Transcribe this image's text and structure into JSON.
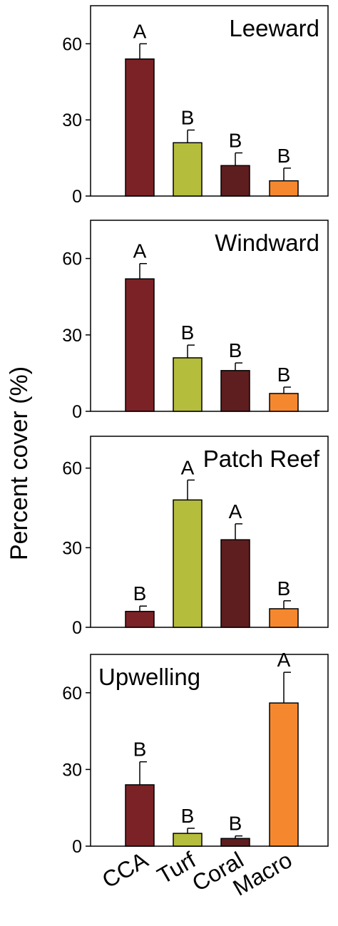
{
  "chart_data": {
    "type": "bar",
    "ylabel": "Percent cover (%)",
    "categories": [
      "CCA",
      "Turf",
      "Coral",
      "Macro"
    ],
    "colors": [
      "#7b2226",
      "#b5bd3c",
      "#5e1e1f",
      "#f5882f"
    ],
    "panels": [
      {
        "title": "Leeward",
        "ylim": [
          0,
          75
        ],
        "yticks": [
          "0",
          "30",
          "60"
        ],
        "values": [
          54,
          21,
          12,
          6
        ],
        "errors": [
          6,
          5,
          5,
          5
        ],
        "letters": [
          "A",
          "B",
          "B",
          "B"
        ]
      },
      {
        "title": "Windward",
        "ylim": [
          0,
          75
        ],
        "yticks": [
          "0",
          "30",
          "60"
        ],
        "values": [
          52,
          21,
          16,
          7
        ],
        "errors": [
          6,
          5,
          3,
          2.5
        ],
        "letters": [
          "A",
          "B",
          "B",
          "B"
        ]
      },
      {
        "title": "Patch Reef",
        "ylim": [
          0,
          72
        ],
        "yticks": [
          "0",
          "30",
          "60"
        ],
        "values": [
          6,
          48,
          33,
          7
        ],
        "errors": [
          2,
          7.5,
          6,
          3
        ],
        "letters": [
          "B",
          "A",
          "A",
          "B"
        ]
      },
      {
        "title": "Upwelling",
        "ylim": [
          0,
          75
        ],
        "yticks": [
          "0",
          "30",
          "60"
        ],
        "values": [
          24,
          5,
          3,
          56
        ],
        "errors": [
          9,
          2,
          1,
          12
        ],
        "letters": [
          "B",
          "B",
          "B",
          "A"
        ]
      }
    ]
  }
}
